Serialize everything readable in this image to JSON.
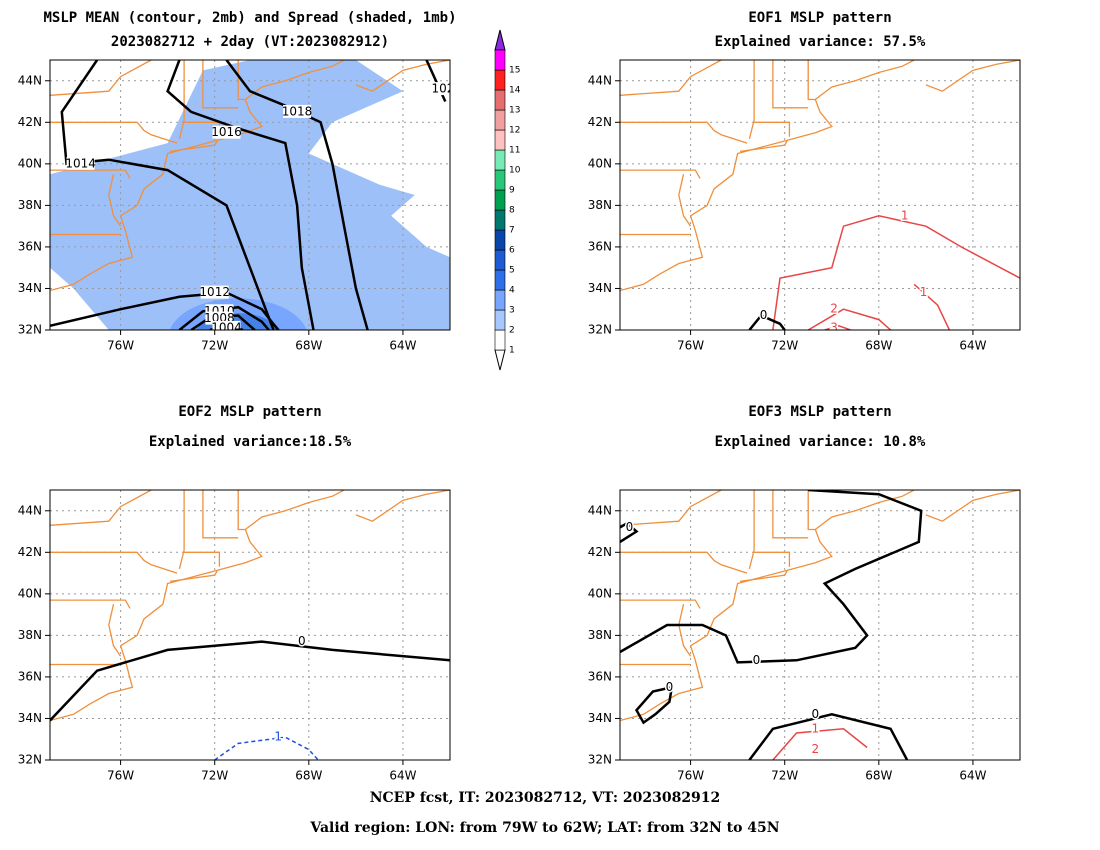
{
  "panels": [
    {
      "title": [
        "MSLP MEAN (contour, 2mb) and Spread (shaded, 1mb)",
        "2023082712 + 2day (VT:2023082912)"
      ],
      "contour_labels": [
        "1018",
        "1016",
        "1014",
        "1012",
        "1010",
        "1008",
        "1004",
        "102"
      ]
    },
    {
      "title": [
        "EOF1 MSLP pattern",
        "Explained variance: 57.5%"
      ],
      "contour_labels": [
        "1",
        "1",
        "2",
        "3",
        "0"
      ]
    },
    {
      "title": [
        "EOF2 MSLP pattern",
        "Explained variance:18.5%"
      ],
      "contour_labels": [
        "0",
        "1"
      ]
    },
    {
      "title": [
        "EOF3 MSLP pattern",
        "Explained variance: 10.8%"
      ],
      "contour_labels": [
        "0",
        "0",
        "0",
        "0",
        "1",
        "2"
      ]
    }
  ],
  "lat_labels": [
    "32N",
    "34N",
    "36N",
    "38N",
    "40N",
    "42N",
    "44N"
  ],
  "lon_labels": [
    "76W",
    "72W",
    "68W",
    "64W"
  ],
  "colorbar_labels": [
    "1",
    "2",
    "3",
    "4",
    "5",
    "6",
    "7",
    "8",
    "9",
    "10",
    "11",
    "12",
    "13",
    "14",
    "15"
  ],
  "footer": [
    "NCEP fcst, IT: 2023082712, VT: 2023082912",
    "Valid region: LON: from 79W to 62W; LAT: from 32N to 45N"
  ]
}
